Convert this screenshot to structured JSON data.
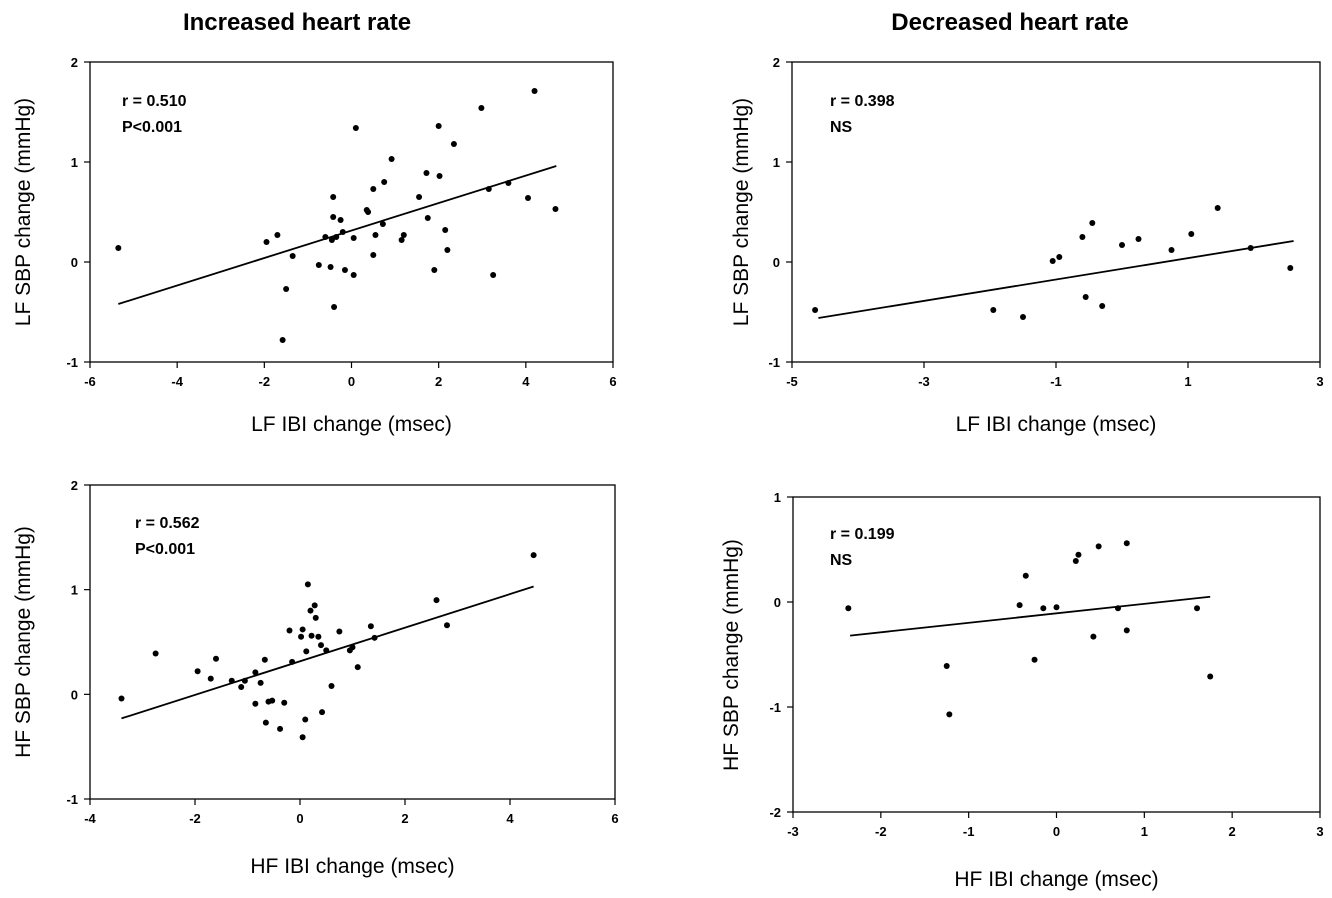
{
  "column_titles": [
    "Increased heart rate",
    "Decreased heart rate"
  ],
  "chart_data": [
    {
      "type": "scatter",
      "title": "",
      "xlabel": "LF IBI change (msec)",
      "ylabel": "LF SBP change (mmHg)",
      "xlim": [
        -6,
        6
      ],
      "ylim": [
        -1,
        2
      ],
      "xticks": [
        -6,
        -4,
        -2,
        0,
        2,
        4,
        6
      ],
      "yticks": [
        -1,
        0,
        1,
        2
      ],
      "annotations": [
        "r = 0.510",
        "P<0.001"
      ],
      "points": [
        [
          -5.35,
          0.14
        ],
        [
          -1.95,
          0.2
        ],
        [
          -1.7,
          0.27
        ],
        [
          -1.5,
          -0.27
        ],
        [
          -1.35,
          0.06
        ],
        [
          -1.58,
          -0.78
        ],
        [
          -0.75,
          -0.03
        ],
        [
          -0.6,
          0.25
        ],
        [
          -0.45,
          0.22
        ],
        [
          -0.42,
          0.45
        ],
        [
          -0.42,
          0.65
        ],
        [
          -0.48,
          -0.05
        ],
        [
          -0.4,
          -0.45
        ],
        [
          -0.35,
          0.25
        ],
        [
          -0.25,
          0.42
        ],
        [
          -0.15,
          -0.08
        ],
        [
          -0.2,
          0.3
        ],
        [
          0.05,
          0.24
        ],
        [
          0.05,
          -0.13
        ],
        [
          0.1,
          1.34
        ],
        [
          0.35,
          0.52
        ],
        [
          0.38,
          0.5
        ],
        [
          0.5,
          0.07
        ],
        [
          0.5,
          0.73
        ],
        [
          0.55,
          0.27
        ],
        [
          0.72,
          0.38
        ],
        [
          0.75,
          0.8
        ],
        [
          0.92,
          1.03
        ],
        [
          1.15,
          0.22
        ],
        [
          1.2,
          0.27
        ],
        [
          1.55,
          0.65
        ],
        [
          1.72,
          0.89
        ],
        [
          1.75,
          0.44
        ],
        [
          1.9,
          -0.08
        ],
        [
          2.02,
          0.86
        ],
        [
          2.0,
          1.36
        ],
        [
          2.15,
          0.32
        ],
        [
          2.2,
          0.12
        ],
        [
          2.35,
          1.18
        ],
        [
          2.98,
          1.54
        ],
        [
          3.15,
          0.73
        ],
        [
          3.25,
          -0.13
        ],
        [
          3.6,
          0.79
        ],
        [
          4.05,
          0.64
        ],
        [
          4.2,
          1.71
        ],
        [
          4.68,
          0.53
        ]
      ],
      "fit": {
        "x": [
          -5.35,
          4.7
        ],
        "y": [
          -0.42,
          0.96
        ]
      }
    },
    {
      "type": "scatter",
      "title": "",
      "xlabel": "LF IBI change (msec)",
      "ylabel": "LF SBP change (mmHg)",
      "xlim": [
        -5,
        3
      ],
      "ylim": [
        -1,
        2
      ],
      "xticks": [
        -5,
        -3,
        -1,
        1,
        3
      ],
      "yticks": [
        -1,
        0,
        1,
        2
      ],
      "annotations": [
        "r = 0.398",
        "NS"
      ],
      "points": [
        [
          -4.65,
          -0.48
        ],
        [
          -1.95,
          -0.48
        ],
        [
          -1.5,
          -0.55
        ],
        [
          -1.05,
          0.01
        ],
        [
          -0.95,
          0.05
        ],
        [
          -0.6,
          0.25
        ],
        [
          -0.55,
          -0.35
        ],
        [
          -0.45,
          0.39
        ],
        [
          -0.3,
          -0.44
        ],
        [
          0.0,
          0.17
        ],
        [
          0.25,
          0.23
        ],
        [
          0.75,
          0.12
        ],
        [
          1.05,
          0.28
        ],
        [
          1.45,
          0.54
        ],
        [
          1.95,
          0.14
        ],
        [
          2.55,
          -0.06
        ]
      ],
      "fit": {
        "x": [
          -4.6,
          2.6
        ],
        "y": [
          -0.56,
          0.21
        ]
      }
    },
    {
      "type": "scatter",
      "title": "",
      "xlabel": "HF IBI change (msec)",
      "ylabel": "HF SBP change (mmHg)",
      "xlim": [
        -4,
        6
      ],
      "ylim": [
        -1,
        2
      ],
      "xticks": [
        -4,
        -2,
        0,
        2,
        4,
        6
      ],
      "yticks": [
        -1,
        0,
        1,
        2
      ],
      "annotations": [
        "r = 0.562",
        "P<0.001"
      ],
      "points": [
        [
          -3.4,
          -0.04
        ],
        [
          -2.75,
          0.39
        ],
        [
          -1.95,
          0.22
        ],
        [
          -1.7,
          0.15
        ],
        [
          -1.6,
          0.34
        ],
        [
          -1.3,
          0.13
        ],
        [
          -1.12,
          0.07
        ],
        [
          -1.05,
          0.13
        ],
        [
          -0.85,
          0.21
        ],
        [
          -0.85,
          -0.09
        ],
        [
          -0.75,
          0.11
        ],
        [
          -0.67,
          0.33
        ],
        [
          -0.6,
          -0.07
        ],
        [
          -0.65,
          -0.27
        ],
        [
          -0.53,
          -0.06
        ],
        [
          -0.38,
          -0.33
        ],
        [
          -0.3,
          -0.08
        ],
        [
          -0.2,
          0.61
        ],
        [
          -0.15,
          0.31
        ],
        [
          0.02,
          0.55
        ],
        [
          0.05,
          0.62
        ],
        [
          0.05,
          -0.41
        ],
        [
          0.1,
          -0.24
        ],
        [
          0.12,
          0.41
        ],
        [
          0.15,
          1.05
        ],
        [
          0.2,
          0.8
        ],
        [
          0.22,
          0.56
        ],
        [
          0.28,
          0.85
        ],
        [
          0.3,
          0.73
        ],
        [
          0.35,
          0.55
        ],
        [
          0.4,
          0.47
        ],
        [
          0.42,
          -0.17
        ],
        [
          0.5,
          0.42
        ],
        [
          0.6,
          0.08
        ],
        [
          0.75,
          0.6
        ],
        [
          0.95,
          0.42
        ],
        [
          1.0,
          0.45
        ],
        [
          1.1,
          0.26
        ],
        [
          1.35,
          0.65
        ],
        [
          1.42,
          0.54
        ],
        [
          2.6,
          0.9
        ],
        [
          2.8,
          0.66
        ],
        [
          4.45,
          1.33
        ]
      ],
      "fit": {
        "x": [
          -3.4,
          4.45
        ],
        "y": [
          -0.23,
          1.03
        ]
      }
    },
    {
      "type": "scatter",
      "title": "",
      "xlabel": "HF IBI change (msec)",
      "ylabel": "HF SBP change (mmHg)",
      "xlim": [
        -3,
        3
      ],
      "ylim": [
        -2,
        1
      ],
      "xticks": [
        -3,
        -2,
        -1,
        0,
        1,
        2,
        3
      ],
      "yticks": [
        -2,
        -1,
        0,
        1
      ],
      "annotations": [
        "r = 0.199",
        "NS"
      ],
      "points": [
        [
          -2.37,
          -0.06
        ],
        [
          -1.25,
          -0.61
        ],
        [
          -1.22,
          -1.07
        ],
        [
          -0.42,
          -0.03
        ],
        [
          -0.35,
          0.25
        ],
        [
          -0.25,
          -0.55
        ],
        [
          -0.15,
          -0.06
        ],
        [
          0.0,
          -0.05
        ],
        [
          0.22,
          0.39
        ],
        [
          0.25,
          0.45
        ],
        [
          0.42,
          -0.33
        ],
        [
          0.48,
          0.53
        ],
        [
          0.7,
          -0.06
        ],
        [
          0.8,
          -0.27
        ],
        [
          0.8,
          0.56
        ],
        [
          1.6,
          -0.06
        ],
        [
          1.75,
          -0.71
        ]
      ],
      "fit": {
        "x": [
          -2.35,
          1.75
        ],
        "y": [
          -0.32,
          0.05
        ]
      }
    }
  ]
}
